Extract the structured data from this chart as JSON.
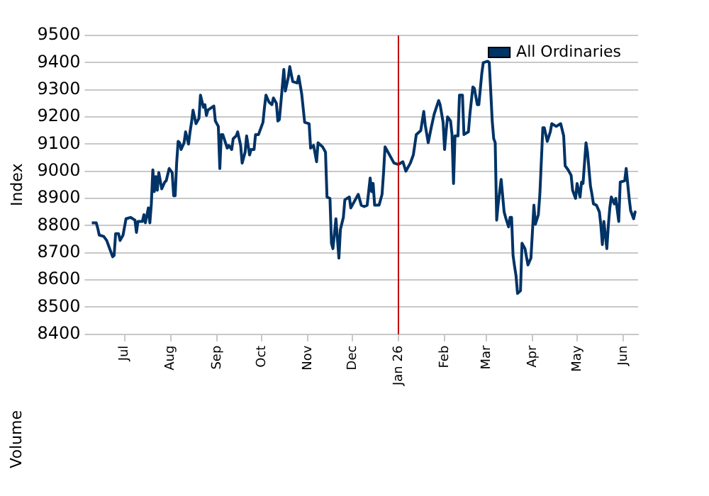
{
  "chart_data": {
    "type": "line",
    "ylabel": "Index",
    "annotations": [
      "Volume"
    ],
    "x": [
      "2025-06-09",
      "2025-06-12",
      "2025-06-13",
      "2025-06-14",
      "2025-06-17",
      "2025-06-19",
      "2025-06-21",
      "2025-06-23",
      "2025-06-24",
      "2025-06-25",
      "2025-06-27",
      "2025-06-28",
      "2025-06-30",
      "2025-07-02",
      "2025-07-05",
      "2025-07-08",
      "2025-07-09",
      "2025-07-10",
      "2025-07-13",
      "2025-07-14",
      "2025-07-15",
      "2025-07-17",
      "2025-07-18",
      "2025-07-19",
      "2025-07-20",
      "2025-07-21",
      "2025-07-22",
      "2025-07-23",
      "2025-07-24",
      "2025-07-26",
      "2025-07-28",
      "2025-07-29",
      "2025-07-31",
      "2025-08-02",
      "2025-08-03",
      "2025-08-04",
      "2025-08-05",
      "2025-08-06",
      "2025-08-07",
      "2025-08-08",
      "2025-08-10",
      "2025-08-11",
      "2025-08-13",
      "2025-08-14",
      "2025-08-15",
      "2025-08-16",
      "2025-08-18",
      "2025-08-20",
      "2025-08-21",
      "2025-08-23",
      "2025-08-24",
      "2025-08-25",
      "2025-08-26",
      "2025-08-30",
      "2025-08-31",
      "2025-09-02",
      "2025-09-03",
      "2025-09-04",
      "2025-09-05",
      "2025-09-08",
      "2025-09-09",
      "2025-09-11",
      "2025-09-12",
      "2025-09-14",
      "2025-09-15",
      "2025-09-17",
      "2025-09-18",
      "2025-09-20",
      "2025-09-21",
      "2025-09-23",
      "2025-09-24",
      "2025-09-26",
      "2025-09-27",
      "2025-09-29",
      "2025-10-02",
      "2025-10-03",
      "2025-10-04",
      "2025-10-06",
      "2025-10-08",
      "2025-10-09",
      "2025-10-11",
      "2025-10-12",
      "2025-10-13",
      "2025-10-14",
      "2025-10-16",
      "2025-10-17",
      "2025-10-19",
      "2025-10-20",
      "2025-10-22",
      "2025-10-25",
      "2025-10-26",
      "2025-10-28",
      "2025-10-30",
      "2025-11-02",
      "2025-11-03",
      "2025-11-05",
      "2025-11-07",
      "2025-11-08",
      "2025-11-11",
      "2025-11-13",
      "2025-11-14",
      "2025-11-16",
      "2025-11-17",
      "2025-11-18",
      "2025-11-20",
      "2025-11-22",
      "2025-11-23",
      "2025-11-25",
      "2025-11-26",
      "2025-11-29",
      "2025-11-30",
      "2025-12-03",
      "2025-12-05",
      "2025-12-07",
      "2025-12-09",
      "2025-12-11",
      "2025-12-13",
      "2025-12-14",
      "2025-12-15",
      "2025-12-16",
      "2025-12-19",
      "2025-12-21",
      "2025-12-22",
      "2025-12-23",
      "2025-12-26",
      "2025-12-29",
      "2026-01-01",
      "2026-01-04",
      "2026-01-06",
      "2026-01-09",
      "2026-01-11",
      "2026-01-13",
      "2026-01-16",
      "2026-01-18",
      "2026-01-19",
      "2026-01-21",
      "2026-01-23",
      "2026-01-25",
      "2026-01-28",
      "2026-01-29",
      "2026-01-31",
      "2026-02-01",
      "2026-02-02",
      "2026-02-03",
      "2026-02-05",
      "2026-02-06",
      "2026-02-07",
      "2026-02-08",
      "2026-02-10",
      "2026-02-11",
      "2026-02-13",
      "2026-02-14",
      "2026-02-17",
      "2026-02-18",
      "2026-02-20",
      "2026-02-21",
      "2026-02-23",
      "2026-02-24",
      "2026-02-26",
      "2026-02-27",
      "2026-03-02",
      "2026-03-03",
      "2026-03-04",
      "2026-03-05",
      "2026-03-06",
      "2026-03-07",
      "2026-03-08",
      "2026-03-09",
      "2026-03-11",
      "2026-03-13",
      "2026-03-14",
      "2026-03-16",
      "2026-03-17",
      "2026-03-18",
      "2026-03-19",
      "2026-03-20",
      "2026-03-21",
      "2026-03-22",
      "2026-03-24",
      "2026-03-25",
      "2026-03-27",
      "2026-03-29",
      "2026-03-31",
      "2026-04-01",
      "2026-04-02",
      "2026-04-03",
      "2026-04-05",
      "2026-04-06",
      "2026-04-08",
      "2026-04-09",
      "2026-04-11",
      "2026-04-13",
      "2026-04-14",
      "2026-04-17",
      "2026-04-20",
      "2026-04-22",
      "2026-04-23",
      "2026-04-25",
      "2026-04-27",
      "2026-04-28",
      "2026-04-30",
      "2026-05-01",
      "2026-05-03",
      "2026-05-04",
      "2026-05-05",
      "2026-05-07",
      "2026-05-08",
      "2026-05-10",
      "2026-05-11",
      "2026-05-12",
      "2026-05-14",
      "2026-05-16",
      "2026-05-17",
      "2026-05-18",
      "2026-05-19",
      "2026-05-21",
      "2026-05-22",
      "2026-05-23",
      "2026-05-24",
      "2026-05-26",
      "2026-05-27",
      "2026-05-29",
      "2026-05-30",
      "2026-06-02",
      "2026-06-03",
      "2026-06-05",
      "2026-06-06",
      "2026-06-08",
      "2026-06-09"
    ],
    "series": [
      {
        "name": "All Ordinaries",
        "color": "#003366",
        "values": [
          8810,
          8810,
          8790,
          8765,
          8760,
          8745,
          8715,
          8685,
          8690,
          8770,
          8770,
          8745,
          8765,
          8825,
          8830,
          8820,
          8775,
          8815,
          8815,
          8840,
          8810,
          8865,
          8810,
          8880,
          9005,
          8925,
          8980,
          8930,
          8995,
          8935,
          8960,
          8965,
          9010,
          8995,
          8910,
          8910,
          9030,
          9110,
          9105,
          9080,
          9105,
          9145,
          9100,
          9145,
          9180,
          9225,
          9175,
          9195,
          9280,
          9235,
          9245,
          9205,
          9225,
          9240,
          9185,
          9165,
          9010,
          9135,
          9135,
          9085,
          9095,
          9080,
          9120,
          9130,
          9145,
          9095,
          9030,
          9070,
          9130,
          9060,
          9080,
          9080,
          9135,
          9135,
          9180,
          9235,
          9280,
          9255,
          9245,
          9270,
          9250,
          9185,
          9190,
          9250,
          9375,
          9295,
          9345,
          9385,
          9330,
          9325,
          9350,
          9285,
          9180,
          9175,
          9085,
          9095,
          9035,
          9105,
          9090,
          9070,
          8905,
          8900,
          8735,
          8715,
          8825,
          8680,
          8785,
          8830,
          8895,
          8905,
          8865,
          8895,
          8915,
          8875,
          8870,
          8875,
          8975,
          8925,
          8955,
          8875,
          8875,
          8915,
          8995,
          9090,
          9060,
          9030,
          9025,
          9035,
          9000,
          9030,
          9060,
          9135,
          9150,
          9220,
          9170,
          9105,
          9160,
          9210,
          9260,
          9245,
          9180,
          9080,
          9145,
          9200,
          9185,
          9135,
          8955,
          9130,
          9130,
          9280,
          9280,
          9135,
          9145,
          9210,
          9310,
          9305,
          9245,
          9245,
          9360,
          9400,
          9405,
          9400,
          9295,
          9185,
          9120,
          9105,
          8820,
          8880,
          8970,
          8850,
          8830,
          8795,
          8830,
          8830,
          8690,
          8650,
          8615,
          8550,
          8560,
          8735,
          8715,
          8655,
          8680,
          8775,
          8875,
          8805,
          8840,
          8915,
          9160,
          9160,
          9110,
          9145,
          9175,
          9165,
          9175,
          9130,
          9020,
          9005,
          8985,
          8930,
          8900,
          8955,
          8905,
          8960,
          8955,
          9105,
          9070,
          8945,
          8915,
          8880,
          8875,
          8850,
          8800,
          8730,
          8815,
          8715,
          8800,
          8865,
          8905,
          8880,
          8900,
          8815,
          8960,
          8965,
          9010,
          8900,
          8855,
          8825,
          8850
        ]
      }
    ],
    "xlim": [
      "2025-06-09",
      "2026-06-11"
    ],
    "xticks": [
      {
        "value": "2025-07-01",
        "label": "Jul"
      },
      {
        "value": "2025-08-01",
        "label": "Aug"
      },
      {
        "value": "2025-09-01",
        "label": "Sep"
      },
      {
        "value": "2025-10-01",
        "label": "Oct"
      },
      {
        "value": "2025-11-01",
        "label": "Nov"
      },
      {
        "value": "2025-12-01",
        "label": "Dec"
      },
      {
        "value": "2026-01-01",
        "label": "Jan 26"
      },
      {
        "value": "2026-02-01",
        "label": "Feb"
      },
      {
        "value": "2026-03-01",
        "label": "Mar"
      },
      {
        "value": "2026-04-01",
        "label": "Apr"
      },
      {
        "value": "2026-05-01",
        "label": "May"
      },
      {
        "value": "2026-06-01",
        "label": "Jun"
      }
    ],
    "ylim": [
      8400,
      9500
    ],
    "yticks": [
      8400,
      8500,
      8600,
      8700,
      8800,
      8900,
      9000,
      9100,
      9200,
      9300,
      9400,
      9500
    ],
    "ref_lines": [
      {
        "axis": "x",
        "value": "2026-01-01",
        "color": "#c00000"
      }
    ],
    "grid": "y",
    "legend": "top right",
    "marker": "none",
    "line_style": "solid"
  }
}
